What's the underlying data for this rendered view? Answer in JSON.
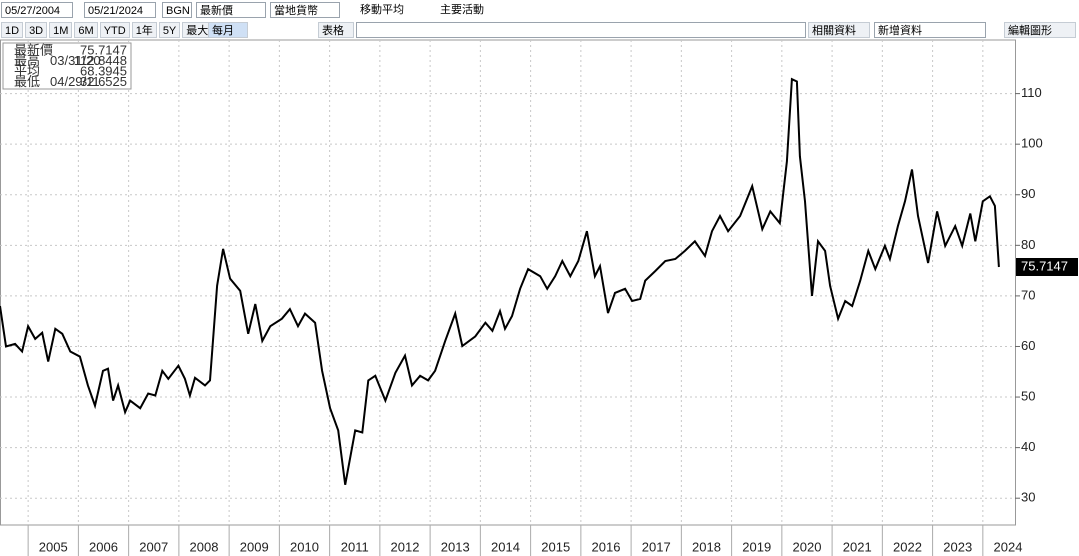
{
  "toolbar": {
    "start_date": "05/27/2004",
    "end_date": "05/21/2024",
    "field_code": "BGN",
    "field": "最新價",
    "currency": "當地貨幣",
    "moving_average": "移動平均",
    "events": "主要活動",
    "periods": [
      "1D",
      "3D",
      "1M",
      "6M",
      "YTD",
      "1年",
      "5Y",
      "最大"
    ],
    "frequency": "每月",
    "table": "表格",
    "related": "相關資料",
    "add_data": "新增資料",
    "edit": "編輯圖形"
  },
  "chart_data": {
    "type": "line",
    "legend": {
      "last_label": "最新價",
      "last_value": 75.7147,
      "high_label": "最高",
      "high_date": "03/31/20",
      "high_value": 112.8448,
      "avg_label": "平均",
      "avg_value": 68.3945,
      "low_label": "最低",
      "low_date": "04/29/11",
      "low_value": 32.6525
    },
    "x": [
      2004.44,
      2004.56,
      2004.74,
      2004.88,
      2005.0,
      2005.14,
      2005.28,
      2005.4,
      2005.54,
      2005.68,
      2005.84,
      2006.03,
      2006.19,
      2006.33,
      2006.49,
      2006.59,
      2006.69,
      2006.79,
      2006.93,
      2007.03,
      2007.23,
      2007.39,
      2007.53,
      2007.67,
      2007.79,
      2007.99,
      2008.12,
      2008.22,
      2008.32,
      2008.52,
      2008.62,
      2008.76,
      2008.88,
      2009.02,
      2009.22,
      2009.38,
      2009.52,
      2009.66,
      2009.82,
      2010.05,
      2010.21,
      2010.37,
      2010.51,
      2010.71,
      2010.85,
      2011.01,
      2011.17,
      2011.31,
      2011.51,
      2011.65,
      2011.77,
      2011.91,
      2012.11,
      2012.31,
      2012.5,
      2012.64,
      2012.8,
      2012.96,
      2013.1,
      2013.3,
      2013.5,
      2013.64,
      2013.9,
      2014.1,
      2014.24,
      2014.39,
      2014.49,
      2014.63,
      2014.79,
      2014.95,
      2015.19,
      2015.33,
      2015.49,
      2015.63,
      2015.79,
      2015.95,
      2016.12,
      2016.28,
      2016.38,
      2016.54,
      2016.68,
      2016.88,
      2017.02,
      2017.18,
      2017.28,
      2017.48,
      2017.68,
      2017.88,
      2018.07,
      2018.27,
      2018.47,
      2018.61,
      2018.77,
      2018.93,
      2019.17,
      2019.41,
      2019.61,
      2019.77,
      2019.96,
      2020.1,
      2020.2,
      2020.3,
      2020.36,
      2020.46,
      2020.6,
      2020.72,
      2020.86,
      2020.96,
      2021.12,
      2021.26,
      2021.4,
      2021.56,
      2021.72,
      2021.86,
      2022.05,
      2022.15,
      2022.31,
      2022.45,
      2022.59,
      2022.71,
      2022.91,
      2023.09,
      2023.25,
      2023.45,
      2023.59,
      2023.75,
      2023.85,
      2024.0,
      2024.14,
      2024.24,
      2024.32
    ],
    "series": [
      {
        "name": "最新價",
        "color": "#000000",
        "values": [
          68,
          60,
          60.5,
          59,
          64,
          61.5,
          62.7,
          57,
          63.5,
          62.5,
          59,
          58,
          52.3,
          48.3,
          55.2,
          55.6,
          49.3,
          52.3,
          47,
          49.3,
          47.8,
          50.7,
          50.3,
          55.2,
          53.6,
          56.2,
          53.6,
          50.3,
          53.8,
          52.3,
          53.3,
          72,
          79.3,
          73.4,
          71,
          62.5,
          68.4,
          61.1,
          64,
          65.5,
          67.4,
          64,
          66.5,
          64.7,
          55.2,
          47.8,
          43.4,
          32.6525,
          43.4,
          43,
          53.3,
          54.2,
          49.3,
          54.8,
          58.2,
          52.3,
          54.2,
          53.3,
          55.2,
          61.1,
          66.5,
          60.1,
          62,
          64.7,
          63.1,
          67,
          63.5,
          66,
          71.4,
          75.3,
          73.9,
          71.4,
          73.9,
          76.9,
          73.9,
          76.9,
          82.8,
          73.9,
          75.9,
          66.6,
          70.6,
          71.4,
          69,
          69.4,
          73,
          74.9,
          76.9,
          77.3,
          78.9,
          80.8,
          77.9,
          82.8,
          85.8,
          82.8,
          85.8,
          91.7,
          83.2,
          86.7,
          84.4,
          96.6,
          112.8448,
          112.4,
          97.6,
          88.7,
          70,
          80.8,
          78.9,
          72,
          65.5,
          69,
          68,
          73,
          78.9,
          75.3,
          79.9,
          77.3,
          83.8,
          88.7,
          95,
          85.8,
          76.5,
          86.7,
          79.9,
          83.8,
          79.9,
          86.3,
          80.8,
          88.7,
          89.7,
          87.8,
          75.7147
        ]
      }
    ],
    "xlim": [
      2004.44,
      2024.64
    ],
    "xticks": [
      2005,
      2006,
      2007,
      2008,
      2009,
      2010,
      2011,
      2012,
      2013,
      2014,
      2015,
      2016,
      2017,
      2018,
      2019,
      2020,
      2021,
      2022,
      2023,
      2024
    ],
    "ylim": [
      24.7,
      120.6
    ],
    "yticks": [
      30,
      40,
      50,
      60,
      70,
      80,
      90,
      100,
      110
    ],
    "grid": true
  }
}
